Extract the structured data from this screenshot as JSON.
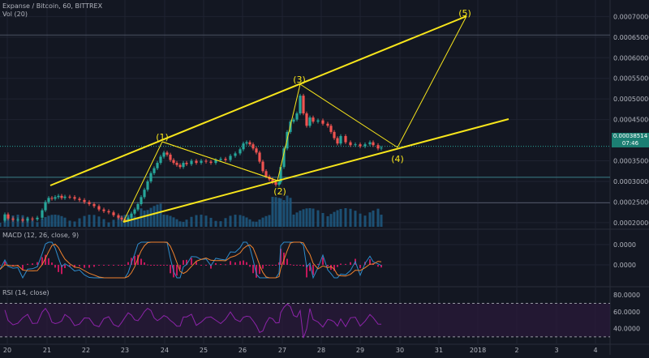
{
  "header": {
    "title": "Expanse / Bitcoin, 60, BITTREX",
    "volume_label": "Vol (20)",
    "macd_label": "MACD (12, 26, close, 9)",
    "rsi_label": "RSI (14, close)"
  },
  "price_badge": {
    "price": "0.00038514",
    "time_left": "07:46"
  },
  "colors": {
    "background": "#131722",
    "grid": "#1f2331",
    "up": "#26a69a",
    "down": "#ef5350",
    "annotation": "#f7e51b",
    "volume": "#1e5a82",
    "macd": "#2e8ccc",
    "signal": "#f0822d",
    "histogram": "#c2185b",
    "rsi": "#8e24aa",
    "badge": "#1c7f73"
  },
  "chart_data": {
    "type": "candlestick",
    "symbol": "Expanse / Bitcoin",
    "interval": "60",
    "exchange": "BITTREX",
    "x_ticks": [
      "20",
      "21",
      "22",
      "23",
      "24",
      "25",
      "26",
      "27",
      "28",
      "29",
      "30",
      "31",
      "2018",
      "2",
      "3",
      "4"
    ],
    "price_axis": {
      "ticks": [
        "0.00070000",
        "0.00065000",
        "0.00060000",
        "0.00055000",
        "0.00050000",
        "0.00045000",
        "0.00035000",
        "0.00030000",
        "0.00025000",
        "0.00020000"
      ],
      "values": [
        0.0007,
        0.00065,
        0.0006,
        0.00055,
        0.0005,
        0.00045,
        0.00035,
        0.0003,
        0.00025,
        0.0002
      ],
      "ylim": [
        0.00019,
        0.00074
      ],
      "last_price": 0.00038514
    },
    "macd_axis": {
      "ticks": [
        "0.0000",
        "0.0000"
      ]
    },
    "rsi_axis": {
      "ticks": [
        "80.0000",
        "60.0000",
        "40.0000"
      ],
      "levels": [
        70,
        30
      ]
    },
    "price_path": [
      [
        0,
        0.000205
      ],
      [
        6,
        0.00022
      ],
      [
        10,
        0.00021
      ],
      [
        16,
        0.000207
      ],
      [
        22,
        0.000208
      ],
      [
        28,
        0.000205
      ],
      [
        34,
        0.00021
      ],
      [
        40,
        0.000208
      ],
      [
        46,
        0.000212
      ],
      [
        52,
        0.00023
      ],
      [
        56,
        0.00025
      ],
      [
        60,
        0.00026
      ],
      [
        64,
        0.000258
      ],
      [
        68,
        0.000262
      ],
      [
        72,
        0.000265
      ],
      [
        76,
        0.00026
      ],
      [
        80,
        0.000263
      ],
      [
        86,
        0.000262
      ],
      [
        92,
        0.000258
      ],
      [
        98,
        0.000255
      ],
      [
        104,
        0.00025
      ],
      [
        110,
        0.000245
      ],
      [
        116,
        0.00024
      ],
      [
        122,
        0.000232
      ],
      [
        128,
        0.000228
      ],
      [
        134,
        0.000225
      ],
      [
        140,
        0.000218
      ],
      [
        146,
        0.000212
      ],
      [
        150,
        0.000208
      ],
      [
        154,
        0.000205
      ],
      [
        158,
        0.000212
      ],
      [
        162,
        0.000222
      ],
      [
        166,
        0.000232
      ],
      [
        170,
        0.000245
      ],
      [
        174,
        0.000262
      ],
      [
        178,
        0.00028
      ],
      [
        182,
        0.0003
      ],
      [
        186,
        0.00032
      ],
      [
        190,
        0.000332
      ],
      [
        194,
        0.000345
      ],
      [
        198,
        0.00036
      ],
      [
        202,
        0.00037
      ],
      [
        206,
        0.000365
      ],
      [
        210,
        0.000352
      ],
      [
        214,
        0.000345
      ],
      [
        218,
        0.00034
      ],
      [
        222,
        0.000335
      ],
      [
        226,
        0.000345
      ],
      [
        230,
        0.000342
      ],
      [
        236,
        0.00035
      ],
      [
        242,
        0.000345
      ],
      [
        248,
        0.00035
      ],
      [
        254,
        0.000348
      ],
      [
        260,
        0.000345
      ],
      [
        266,
        0.000352
      ],
      [
        272,
        0.000355
      ],
      [
        278,
        0.000352
      ],
      [
        284,
        0.000362
      ],
      [
        290,
        0.000368
      ],
      [
        296,
        0.000378
      ],
      [
        300,
        0.000392
      ],
      [
        304,
        0.000395
      ],
      [
        308,
        0.00039
      ],
      [
        312,
        0.00038
      ],
      [
        316,
        0.00037
      ],
      [
        320,
        0.000348
      ],
      [
        324,
        0.000325
      ],
      [
        328,
        0.000312
      ],
      [
        332,
        0.000305
      ],
      [
        336,
        0.000298
      ],
      [
        340,
        0.000292
      ],
      [
        344,
        0.000298
      ],
      [
        346,
        0.000335
      ],
      [
        350,
        0.00038
      ],
      [
        354,
        0.00042
      ],
      [
        358,
        0.000445
      ],
      [
        362,
        0.00045
      ],
      [
        366,
        0.000465
      ],
      [
        370,
        0.000508
      ],
      [
        374,
        0.000465
      ],
      [
        378,
        0.000435
      ],
      [
        382,
        0.000455
      ],
      [
        386,
        0.000445
      ],
      [
        392,
        0.000448
      ],
      [
        398,
        0.00044
      ],
      [
        404,
        0.000435
      ],
      [
        408,
        0.00042
      ],
      [
        412,
        0.000405
      ],
      [
        416,
        0.000392
      ],
      [
        420,
        0.00041
      ],
      [
        426,
        0.000395
      ],
      [
        432,
        0.000388
      ],
      [
        438,
        0.00039
      ],
      [
        444,
        0.000385
      ],
      [
        450,
        0.00039
      ],
      [
        456,
        0.000395
      ],
      [
        460,
        0.000388
      ],
      [
        466,
        0.00038
      ],
      [
        470,
        0.000382
      ]
    ],
    "annotations": {
      "wave_labels": [
        "(1)",
        "(2)",
        "(3)",
        "(4)",
        "(5)"
      ]
    }
  }
}
